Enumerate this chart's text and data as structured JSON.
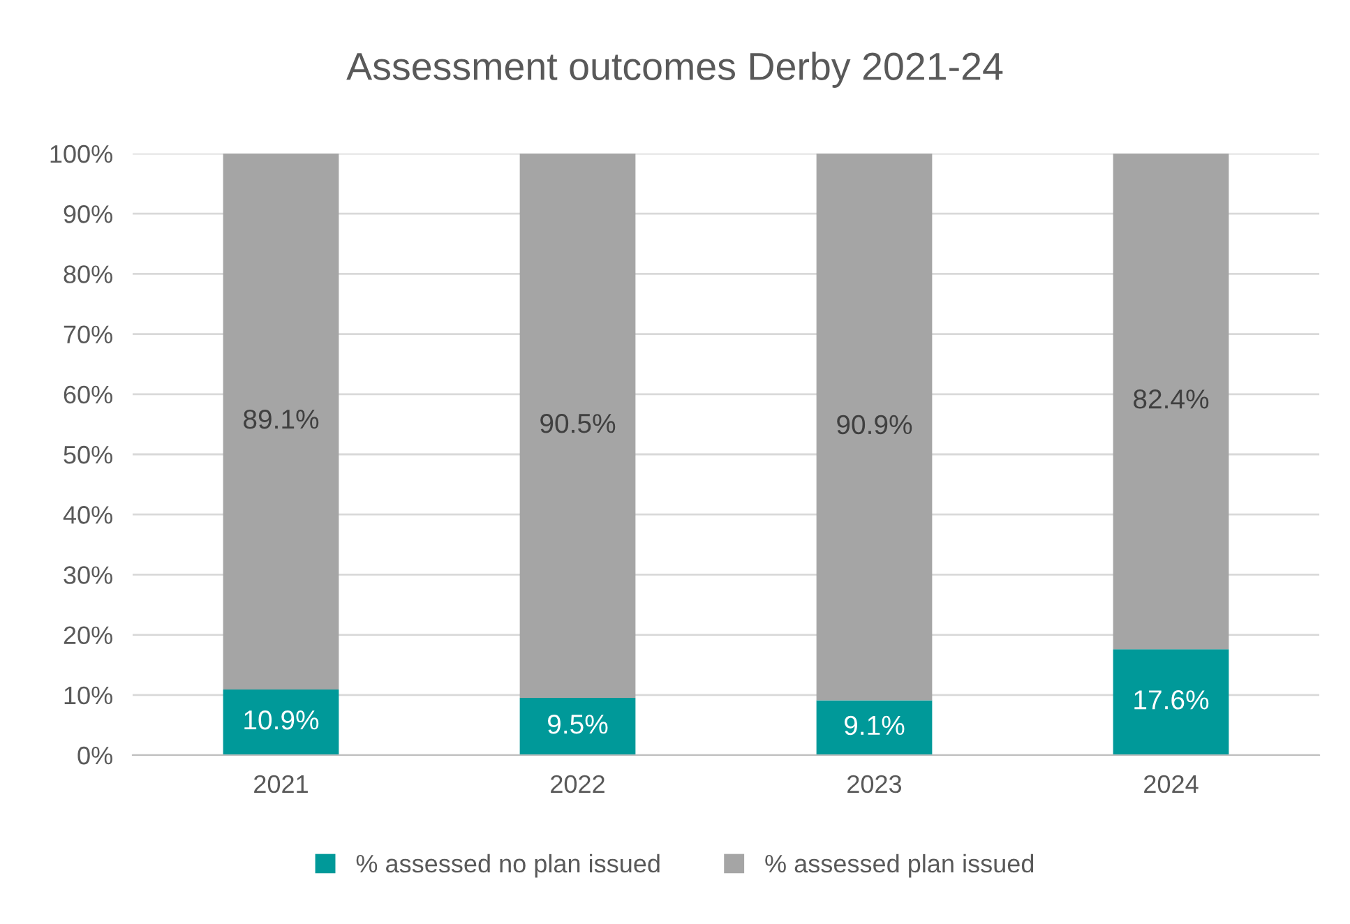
{
  "chart_data": {
    "type": "bar",
    "title": "Assessment outcomes Derby 2021-24",
    "categories": [
      "2021",
      "2022",
      "2023",
      "2024"
    ],
    "stacked": true,
    "series": [
      {
        "name": "% assessed no plan issued",
        "color": "#009999",
        "values": [
          10.9,
          9.5,
          9.1,
          17.6
        ],
        "value_labels": [
          "10.9%",
          "9.5%",
          "9.1%",
          "17.6%"
        ]
      },
      {
        "name": "% assessed plan issued",
        "color": "#a5a5a5",
        "values": [
          89.1,
          90.5,
          90.9,
          82.4
        ],
        "value_labels": [
          "89.1%",
          "90.5%",
          "90.9%",
          "82.4%"
        ]
      }
    ],
    "ylim": [
      0,
      100
    ],
    "yticks": [
      {
        "value": 0,
        "label": "0%"
      },
      {
        "value": 10,
        "label": "10%"
      },
      {
        "value": 20,
        "label": "20%"
      },
      {
        "value": 30,
        "label": "30%"
      },
      {
        "value": 40,
        "label": "40%"
      },
      {
        "value": 50,
        "label": "50%"
      },
      {
        "value": 60,
        "label": "60%"
      },
      {
        "value": 70,
        "label": "70%"
      },
      {
        "value": 80,
        "label": "80%"
      },
      {
        "value": 90,
        "label": "90%"
      },
      {
        "value": 100,
        "label": "100%"
      }
    ],
    "grid": "y",
    "legend": "bottom"
  }
}
